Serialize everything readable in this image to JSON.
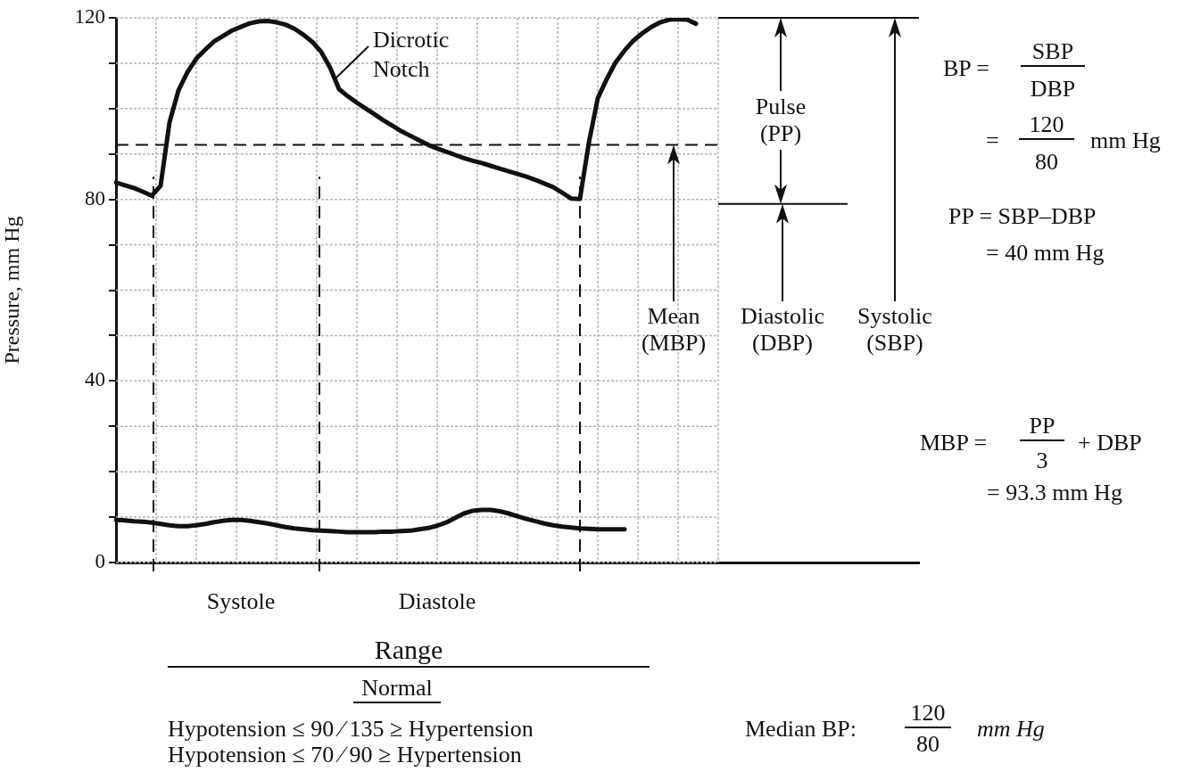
{
  "chart_data": {
    "type": "line",
    "ylabel": "Pressure, mm Hg",
    "ylim": [
      0,
      120
    ],
    "categories": [
      null,
      null,
      null,
      null,
      null,
      null,
      null,
      null,
      null,
      null,
      null,
      null,
      null,
      null,
      "Systole",
      null,
      null,
      null,
      null,
      null,
      null,
      null,
      null,
      null,
      null,
      null,
      null,
      null,
      null,
      null,
      null,
      null,
      null,
      null,
      null,
      null,
      "Diastole",
      null,
      null,
      null,
      null,
      null,
      null,
      null,
      null,
      null,
      null,
      null,
      null,
      null,
      null,
      null,
      null,
      null,
      null,
      null,
      null,
      null,
      null,
      null,
      null,
      null,
      null,
      null,
      null,
      null,
      null,
      null,
      null,
      null,
      null,
      null,
      null,
      null,
      null,
      null,
      null,
      null,
      null,
      null,
      null,
      null,
      null,
      null,
      null,
      null,
      null,
      null,
      null,
      null,
      null
    ],
    "yticks": [
      0,
      {
        "value": 10,
        "label": null
      },
      {
        "value": 20,
        "label": null
      },
      {
        "value": 30,
        "label": null
      },
      40,
      {
        "value": 50,
        "label": null
      },
      {
        "value": 60,
        "label": null
      },
      {
        "value": 70,
        "label": null
      },
      80,
      {
        "value": 90,
        "label": null
      },
      {
        "value": 100,
        "label": null
      },
      {
        "value": 110,
        "label": null
      },
      120
    ],
    "grid": true,
    "legend": false,
    "marker": "none",
    "series": [
      {
        "color": "#111111",
        "values": [
          83.7,
          83.1,
          82.5,
          81.7,
          80.8,
          83,
          97,
          104,
          108,
          111,
          113,
          114.8,
          116,
          117.2,
          118,
          118.8,
          119.2,
          119.3,
          119,
          118.5,
          117.6,
          116.3,
          114.7,
          112.5,
          109,
          104.3,
          102.7,
          101.3,
          100,
          98.7,
          97.4,
          96.2,
          95,
          94,
          93,
          92,
          91.2,
          90.5,
          89.8,
          89.1,
          88.5,
          88,
          87.4,
          86.8,
          86.2,
          85.6,
          85,
          84.3,
          83.5,
          82.7,
          81.5,
          80.2,
          80.1,
          92.5,
          102.3,
          106.5,
          110.2,
          112.8,
          115,
          116.6,
          118,
          119,
          119.6,
          119.7,
          119.6,
          118.7,
          null,
          null,
          null,
          null,
          null,
          null,
          null,
          null,
          null,
          null,
          null,
          null,
          null,
          null,
          null,
          null,
          null,
          null,
          null,
          null,
          null,
          null,
          null,
          null,
          null
        ]
      },
      {
        "color": "#111111",
        "values": [
          9.4,
          9.3,
          9.1,
          9,
          8.8,
          8.5,
          8.2,
          8,
          8,
          8.2,
          8.5,
          8.9,
          9.2,
          9.4,
          9.4,
          9.2,
          8.9,
          8.6,
          8.2,
          7.8,
          7.5,
          7.3,
          7.1,
          7,
          6.9,
          6.8,
          6.7,
          6.7,
          6.7,
          6.7,
          6.8,
          6.8,
          6.9,
          7,
          7.3,
          7.6,
          8.1,
          8.8,
          9.8,
          10.8,
          11.4,
          11.6,
          11.6,
          11.3,
          10.8,
          10.2,
          9.6,
          9.1,
          8.6,
          8.2,
          7.9,
          7.7,
          7.5,
          7.4,
          7.3,
          7.3,
          7.3,
          7.3,
          null,
          null,
          null,
          null,
          null,
          null,
          null,
          null,
          null,
          null,
          null,
          null,
          null,
          null,
          null,
          null,
          null,
          null,
          null,
          null,
          null,
          null,
          null,
          null,
          null,
          null,
          null,
          null,
          null,
          null,
          null,
          null,
          null
        ]
      }
    ],
    "ref_lines": [
      {
        "axis": "y",
        "value": 92,
        "line_style": "dashed",
        "color": "#111111"
      },
      {
        "axis": "y",
        "value": 120,
        "line_style": "solid",
        "color": "#111111"
      },
      {
        "axis": "y",
        "value": 79,
        "line_style": "solid",
        "color": "#111111"
      }
    ],
    "annotations": [
      "Dicrotic Notch",
      "Pulse (PP)",
      "BP =",
      "SBP",
      "DBP",
      "=",
      "120",
      "80",
      "mm Hg",
      "PP = SBP–DBP",
      "= 40 mm Hg",
      "MBP =",
      "PP",
      "3",
      "+ DBP",
      "= 93.3 mm Hg",
      "Range",
      "Normal",
      "Hypotension ≤ 90 ⁄ 135 ≥ Hypertension",
      "Hypotension ≤ 70 ⁄ 90 ≥ Hypertension",
      "Median BP:",
      "120",
      "80",
      "mm Hg",
      "Mean (MBP)",
      "Systolic (SBP)",
      "Diastolic (DBP)"
    ]
  }
}
